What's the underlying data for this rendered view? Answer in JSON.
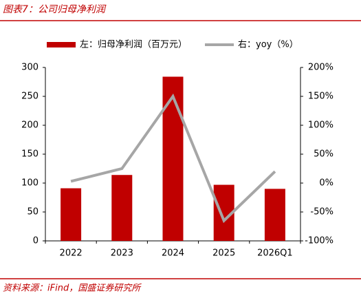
{
  "chart_data": {
    "type": "bar",
    "title": "图表7：公司归母净利润",
    "source": "资料来源：iFind，国盛证券研究所",
    "categories": [
      "2022",
      "2023",
      "2024",
      "2025",
      "2026Q1"
    ],
    "series": [
      {
        "name": "左：归母净利润（百万元）",
        "type": "bar",
        "color": "#c00000",
        "values": [
          91,
          114,
          284,
          97,
          90
        ]
      },
      {
        "name": "右：yoy（%）",
        "type": "line",
        "axis": "y2",
        "color": "#a6a6a6",
        "values": [
          3,
          25,
          150,
          -65,
          20
        ]
      }
    ],
    "ylim": [
      0,
      300
    ],
    "yticks": [
      0,
      50,
      100,
      150,
      200,
      250,
      300
    ],
    "y2lim": [
      -100,
      200
    ],
    "y2ticks": [
      {
        "value": -100,
        "label": "-100%"
      },
      {
        "value": -50,
        "label": "-50%"
      },
      {
        "value": 0,
        "label": "0%"
      },
      {
        "value": 50,
        "label": "50%"
      },
      {
        "value": 100,
        "label": "100%"
      },
      {
        "value": 150,
        "label": "150%"
      },
      {
        "value": 200,
        "label": "200%"
      }
    ]
  }
}
